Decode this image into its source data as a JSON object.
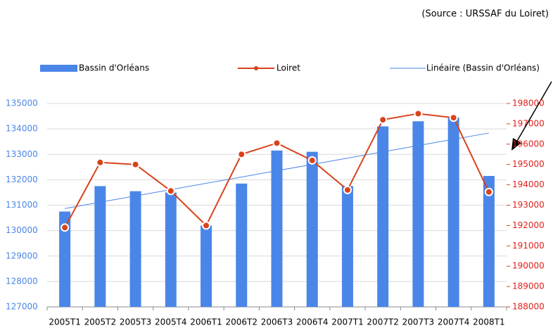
{
  "chart_data": {
    "type": "bar-line",
    "source": "(Source : URSSAF du Loiret)",
    "categories": [
      "2005T1",
      "2005T2",
      "2005T3",
      "2005T4",
      "2006T1",
      "2006T2",
      "2006T3",
      "2006T4",
      "2007T1",
      "2007T2",
      "2007T3",
      "2007T4",
      "2008T1"
    ],
    "series": [
      {
        "name": "Bassin d'Orléans",
        "type": "bar",
        "color": "#4a86e8",
        "values": [
          130750,
          131750,
          131550,
          131500,
          130200,
          131850,
          133150,
          133100,
          131750,
          134100,
          134300,
          134450,
          132150
        ]
      },
      {
        "name": "Loiret",
        "type": "line",
        "axis": "y2",
        "color": "#d8431c",
        "values": [
          191900,
          195100,
          195000,
          193700,
          192000,
          195500,
          196050,
          195200,
          193750,
          197200,
          197500,
          197300,
          193650
        ]
      }
    ],
    "trendline": {
      "name": "Linéaire (Bassin d'Orléans)",
      "color": "#4a86e8"
    },
    "ylim": [
      127000,
      135000
    ],
    "yticks": [
      127000,
      128000,
      129000,
      130000,
      131000,
      132000,
      133000,
      134000,
      135000
    ],
    "y2lim": [
      188000,
      198000
    ],
    "y2ticks": [
      188000,
      189000,
      190000,
      191000,
      192000,
      193000,
      194000,
      195000,
      196000,
      197000,
      198000
    ],
    "grid": true
  }
}
